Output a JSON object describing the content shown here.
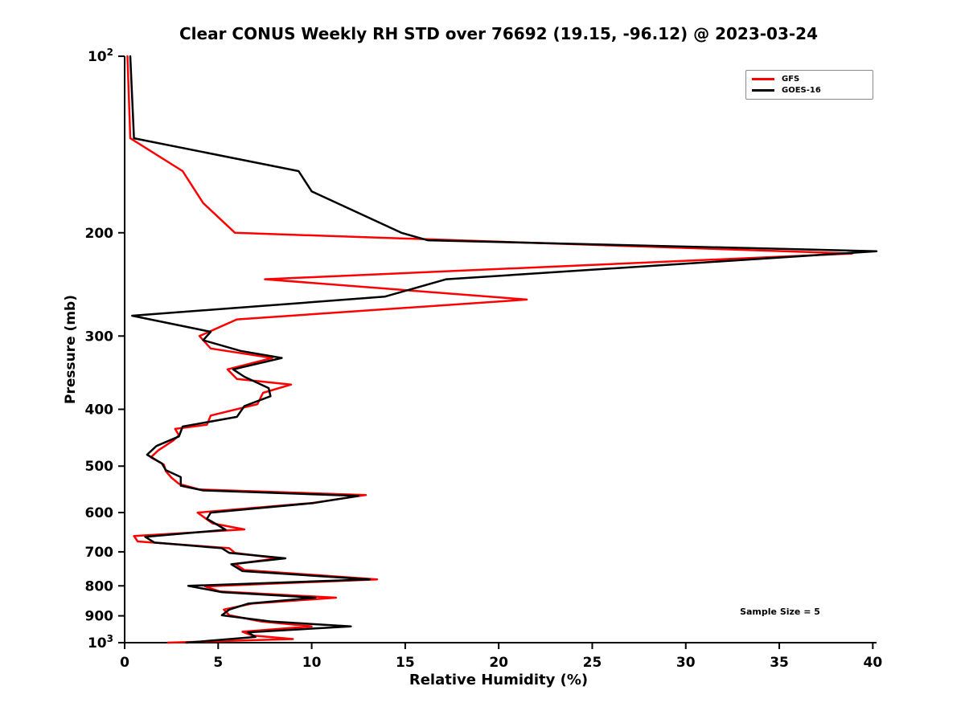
{
  "title": "Clear CONUS Weekly RH STD over 76692 (19.15, -96.12) @ 2023-03-24",
  "annotations": {
    "sample_size": "Sample Size = 5"
  },
  "legend": {
    "position": "upper right",
    "entries": [
      {
        "label": "GFS",
        "color": "#ff0000"
      },
      {
        "label": "GOES-16",
        "color": "#000000"
      }
    ]
  },
  "chart_data": {
    "type": "line",
    "title": "Clear CONUS Weekly RH STD over 76692 (19.15, -96.12) @ 2023-03-24",
    "xlabel": "Relative Humidity (%)",
    "ylabel": "Pressure (mb)",
    "xlim": [
      0,
      40.2
    ],
    "ylim": [
      100,
      1000
    ],
    "yscale": "log",
    "y_inverted": true,
    "grid": false,
    "background": "#ffffff",
    "xticks": {
      "values": [
        0,
        5,
        10,
        15,
        20,
        25,
        30,
        35,
        40
      ],
      "labels": [
        "0",
        "5",
        "10",
        "15",
        "20",
        "25",
        "30",
        "35",
        "40"
      ]
    },
    "yticks": {
      "values": [
        100,
        200,
        300,
        400,
        500,
        600,
        700,
        800,
        900,
        1000
      ],
      "labels": [
        "10^2",
        "200",
        "300",
        "400",
        "500",
        "600",
        "700",
        "800",
        "900",
        "10^3"
      ]
    },
    "point_format": [
      "pressure_mb",
      "rh_std_percent"
    ],
    "series": [
      {
        "name": "GFS",
        "color": "#ff0000",
        "line_width": 2.5,
        "points": [
          [
            100,
            0.15
          ],
          [
            138,
            0.3
          ],
          [
            157,
            3.1
          ],
          [
            178,
            4.2
          ],
          [
            200,
            5.9
          ],
          [
            217,
            38.9
          ],
          [
            240,
            7.5
          ],
          [
            260,
            21.5
          ],
          [
            281,
            6.0
          ],
          [
            300,
            4.0
          ],
          [
            315,
            4.6
          ],
          [
            327,
            7.9
          ],
          [
            342,
            5.5
          ],
          [
            355,
            6.0
          ],
          [
            363,
            8.9
          ],
          [
            375,
            7.4
          ],
          [
            392,
            7.1
          ],
          [
            410,
            4.6
          ],
          [
            425,
            4.4
          ],
          [
            432,
            2.7
          ],
          [
            443,
            2.9
          ],
          [
            452,
            2.6
          ],
          [
            470,
            1.8
          ],
          [
            483,
            1.4
          ],
          [
            497,
            2.1
          ],
          [
            510,
            2.2
          ],
          [
            523,
            2.5
          ],
          [
            536,
            2.9
          ],
          [
            548,
            4.0
          ],
          [
            560,
            12.9
          ],
          [
            578,
            10.0
          ],
          [
            600,
            3.9
          ],
          [
            613,
            4.3
          ],
          [
            626,
            4.7
          ],
          [
            641,
            6.4
          ],
          [
            658,
            0.5
          ],
          [
            672,
            0.7
          ],
          [
            690,
            5.6
          ],
          [
            703,
            5.9
          ],
          [
            718,
            8.2
          ],
          [
            734,
            5.9
          ],
          [
            752,
            6.4
          ],
          [
            780,
            13.5
          ],
          [
            802,
            4.3
          ],
          [
            818,
            5.1
          ],
          [
            838,
            11.3
          ],
          [
            858,
            6.8
          ],
          [
            878,
            5.3
          ],
          [
            898,
            5.6
          ],
          [
            920,
            7.3
          ],
          [
            938,
            10.0
          ],
          [
            958,
            6.3
          ],
          [
            972,
            6.8
          ],
          [
            986,
            9.0
          ],
          [
            1000,
            2.3
          ]
        ]
      },
      {
        "name": "GOES-16",
        "color": "#000000",
        "line_width": 2.5,
        "points": [
          [
            100,
            0.3
          ],
          [
            138,
            0.5
          ],
          [
            157,
            9.3
          ],
          [
            170,
            10.0
          ],
          [
            200,
            14.8
          ],
          [
            206,
            16.2
          ],
          [
            215,
            40.2
          ],
          [
            240,
            17.2
          ],
          [
            257,
            13.9
          ],
          [
            277,
            0.4
          ],
          [
            295,
            4.6
          ],
          [
            305,
            4.2
          ],
          [
            318,
            6.2
          ],
          [
            327,
            8.4
          ],
          [
            342,
            5.8
          ],
          [
            352,
            6.4
          ],
          [
            368,
            7.7
          ],
          [
            380,
            7.8
          ],
          [
            395,
            6.4
          ],
          [
            412,
            6.0
          ],
          [
            428,
            3.1
          ],
          [
            445,
            2.9
          ],
          [
            462,
            1.7
          ],
          [
            478,
            1.2
          ],
          [
            495,
            2.0
          ],
          [
            508,
            2.2
          ],
          [
            522,
            3.0
          ],
          [
            540,
            3.0
          ],
          [
            550,
            4.2
          ],
          [
            562,
            12.5
          ],
          [
            578,
            10.1
          ],
          [
            600,
            4.6
          ],
          [
            615,
            4.4
          ],
          [
            628,
            4.9
          ],
          [
            642,
            5.4
          ],
          [
            660,
            1.1
          ],
          [
            675,
            1.6
          ],
          [
            690,
            5.2
          ],
          [
            703,
            5.6
          ],
          [
            718,
            8.6
          ],
          [
            735,
            5.7
          ],
          [
            755,
            6.3
          ],
          [
            780,
            13.1
          ],
          [
            800,
            3.4
          ],
          [
            820,
            5.2
          ],
          [
            838,
            10.2
          ],
          [
            858,
            6.6
          ],
          [
            878,
            5.6
          ],
          [
            898,
            5.2
          ],
          [
            920,
            7.8
          ],
          [
            938,
            12.1
          ],
          [
            960,
            6.6
          ],
          [
            978,
            7.0
          ],
          [
            1000,
            3.3
          ]
        ]
      }
    ]
  }
}
